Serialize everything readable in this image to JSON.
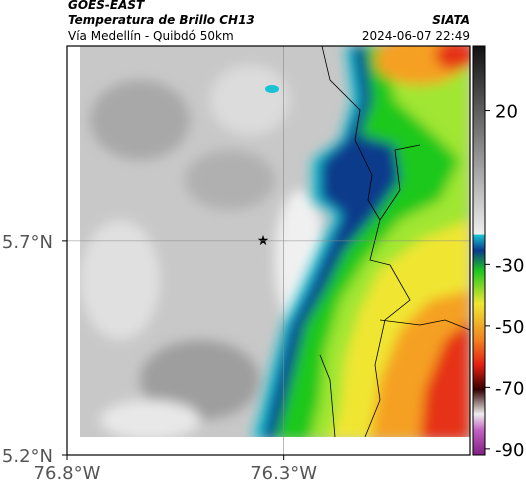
{
  "header": {
    "source": "GOES-EAST",
    "product": "Temperatura de Brillo CH13",
    "location": "Vía Medellín - Quibdó 50km",
    "credit": "SIATA",
    "datetime": "2024-06-07 22:49"
  },
  "map": {
    "xlim": [
      -76.8,
      -75.87
    ],
    "ylim": [
      5.2,
      6.155
    ],
    "xticks": [
      {
        "value": -76.8,
        "label": "76.8°W"
      },
      {
        "value": -76.3,
        "label": "76.3°W"
      }
    ],
    "yticks": [
      {
        "value": 5.2,
        "label": "5.2°N"
      },
      {
        "value": 5.7,
        "label": "5.7°N"
      }
    ],
    "grid": true
  },
  "colorbar": {
    "lim": [
      -92,
      41
    ],
    "ticks": [
      20,
      -30,
      -50,
      -70,
      -90
    ]
  }
}
